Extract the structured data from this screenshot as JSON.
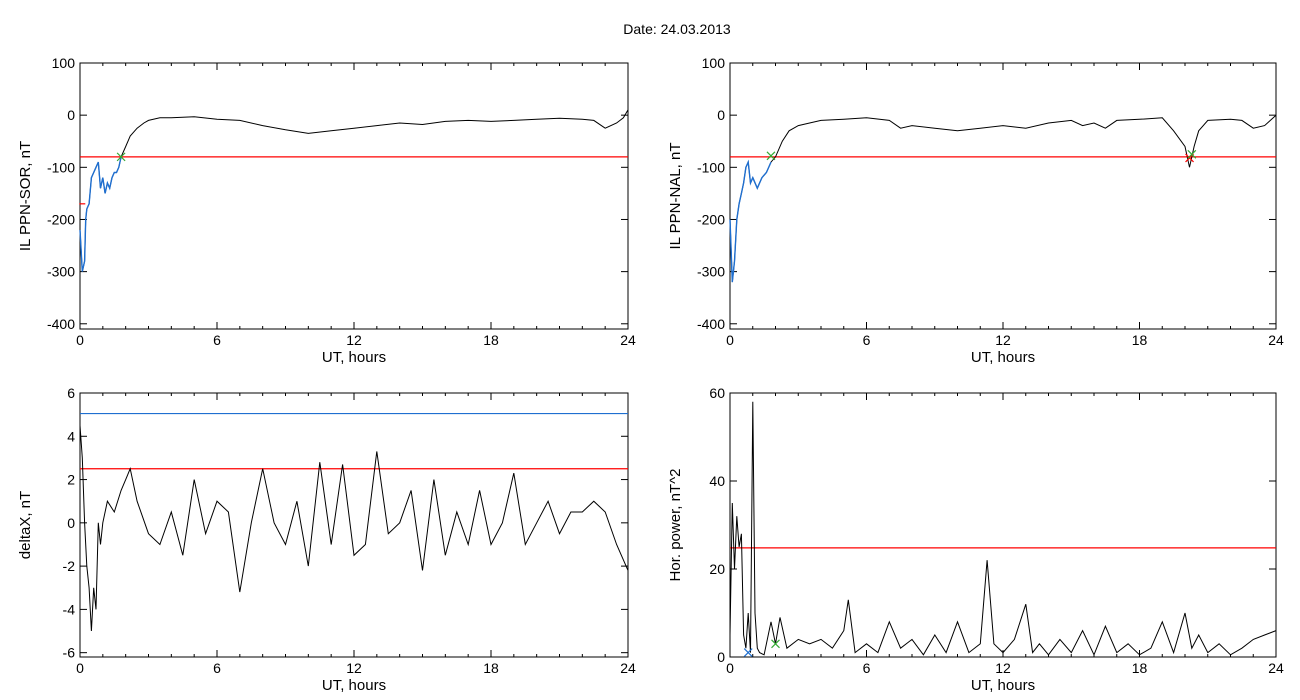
{
  "date_label": "Date:  24.03.2013",
  "colors": {
    "line": "#000000",
    "threshold_red": "#ff0000",
    "threshold_blue": "#1f6fd0",
    "highlight_blue": "#1f6fd0",
    "marker_green": "#33aa33",
    "marker_red": "#dd3333"
  },
  "chart_data": [
    {
      "id": "p1",
      "type": "line",
      "ylabel": "IL PPN-SOR, nT",
      "xlabel": "UT, hours",
      "xlim": [
        0,
        24
      ],
      "ylim": [
        -410,
        100
      ],
      "xticks": [
        0,
        6,
        12,
        18,
        24
      ],
      "yticks": [
        100,
        0,
        -100,
        -200,
        -300,
        -400
      ],
      "thresholds": [
        {
          "y": -80,
          "color": "red"
        }
      ],
      "series": [
        {
          "x": [
            0,
            0.1,
            0.2,
            0.25,
            0.3,
            0.4,
            0.5,
            0.6,
            0.7,
            0.8,
            0.9,
            1.0,
            1.1,
            1.2,
            1.3,
            1.4,
            1.5,
            1.6,
            1.7,
            1.8,
            2.0,
            2.2,
            2.5,
            2.8,
            3.0,
            3.5,
            4,
            5,
            6,
            7,
            8,
            9,
            10,
            11,
            12,
            13,
            14,
            15,
            16,
            17,
            18,
            19,
            20,
            21,
            22,
            22.5,
            23,
            23.5,
            23.8,
            24
          ],
          "y": [
            -220,
            -300,
            -280,
            -200,
            -180,
            -170,
            -120,
            -110,
            -100,
            -90,
            -140,
            -120,
            -150,
            -130,
            -140,
            -120,
            -110,
            -110,
            -100,
            -80,
            -60,
            -40,
            -25,
            -15,
            -10,
            -5,
            -5,
            -3,
            -8,
            -10,
            -20,
            -28,
            -35,
            -30,
            -25,
            -20,
            -15,
            -18,
            -12,
            -10,
            -12,
            -10,
            -8,
            -6,
            -8,
            -10,
            -25,
            -15,
            -5,
            10
          ],
          "highlight_until_x": 1.8
        }
      ],
      "markers": [
        {
          "x": 1.8,
          "y": -80,
          "color": "green",
          "shape": "x"
        },
        {
          "x": 0.1,
          "y": -170,
          "color": "red",
          "shape": "tick"
        }
      ]
    },
    {
      "id": "p2",
      "type": "line",
      "ylabel": "IL PPN-NAL, nT",
      "xlabel": "UT, hours",
      "xlim": [
        0,
        24
      ],
      "ylim": [
        -410,
        100
      ],
      "xticks": [
        0,
        6,
        12,
        18,
        24
      ],
      "yticks": [
        100,
        0,
        -100,
        -200,
        -300,
        -400
      ],
      "thresholds": [
        {
          "y": -80,
          "color": "red"
        }
      ],
      "series": [
        {
          "x": [
            0,
            0.1,
            0.2,
            0.3,
            0.4,
            0.5,
            0.6,
            0.7,
            0.8,
            0.9,
            1.0,
            1.2,
            1.4,
            1.6,
            1.8,
            2.0,
            2.3,
            2.6,
            3.0,
            3.5,
            4,
            5,
            6,
            7,
            7.5,
            8,
            9,
            10,
            11,
            12,
            13,
            14,
            15,
            15.5,
            16,
            16.5,
            17,
            18,
            19,
            19.5,
            20,
            20.2,
            20.4,
            20.6,
            21,
            22,
            22.5,
            23,
            23.5,
            24
          ],
          "y": [
            -200,
            -320,
            -280,
            -200,
            -170,
            -150,
            -130,
            -100,
            -90,
            -130,
            -120,
            -140,
            -120,
            -110,
            -90,
            -80,
            -50,
            -30,
            -20,
            -15,
            -10,
            -8,
            -5,
            -10,
            -25,
            -20,
            -25,
            -30,
            -25,
            -20,
            -25,
            -15,
            -10,
            -20,
            -15,
            -25,
            -10,
            -8,
            -5,
            -30,
            -60,
            -100,
            -60,
            -30,
            -10,
            -8,
            -10,
            -25,
            -20,
            0
          ],
          "highlight_until_x": 1.8
        }
      ],
      "markers": [
        {
          "x": 1.8,
          "y": -78,
          "color": "green",
          "shape": "x"
        },
        {
          "x": 20.2,
          "y": -82,
          "color": "red",
          "shape": "x"
        },
        {
          "x": 20.3,
          "y": -75,
          "color": "green",
          "shape": "x"
        }
      ]
    },
    {
      "id": "p3",
      "type": "line",
      "ylabel": "deltaX, nT",
      "xlabel": "UT, hours",
      "xlim": [
        0,
        24
      ],
      "ylim": [
        -6.2,
        6
      ],
      "xticks": [
        0,
        6,
        12,
        18,
        24
      ],
      "yticks": [
        6,
        4,
        2,
        0,
        -2,
        -4,
        -6
      ],
      "thresholds": [
        {
          "y": 5.05,
          "color": "blue"
        },
        {
          "y": 2.5,
          "color": "red"
        }
      ],
      "series": [
        {
          "x": [
            0,
            0.1,
            0.2,
            0.3,
            0.4,
            0.5,
            0.6,
            0.7,
            0.8,
            0.9,
            1.0,
            1.2,
            1.5,
            1.8,
            2.0,
            2.2,
            2.5,
            3,
            3.5,
            4,
            4.5,
            5,
            5.5,
            6,
            6.5,
            7,
            7.5,
            8,
            8.5,
            9,
            9.5,
            10,
            10.5,
            11,
            11.5,
            12,
            12.5,
            13,
            13.5,
            14,
            14.5,
            15,
            15.5,
            16,
            16.5,
            17,
            17.5,
            18,
            18.5,
            19,
            19.5,
            20,
            20.5,
            21,
            21.5,
            22,
            22.5,
            23,
            23.5,
            24
          ],
          "y": [
            4.5,
            3,
            0,
            -2,
            -3,
            -5,
            -3,
            -4,
            0,
            -1,
            0,
            1,
            0.5,
            1.5,
            2,
            2.5,
            1,
            -0.5,
            -1,
            0.5,
            -1.5,
            2,
            -0.5,
            1,
            0.5,
            -3.2,
            0,
            2.5,
            0,
            -1,
            1,
            -2,
            2.8,
            -1,
            2.7,
            -1.5,
            -1,
            3.3,
            -0.5,
            0,
            1.5,
            -2.2,
            2,
            -1.5,
            0.5,
            -1,
            1.5,
            -1,
            0,
            2.3,
            -1,
            0,
            1,
            -0.5,
            0.5,
            0.5,
            1,
            0.5,
            -1,
            -2.2
          ]
        }
      ],
      "markers": []
    },
    {
      "id": "p4",
      "type": "line",
      "ylabel": "Hor. power, nT^2",
      "xlabel": "UT, hours",
      "xlim": [
        0,
        24
      ],
      "ylim": [
        0,
        60
      ],
      "xticks": [
        0,
        6,
        12,
        18,
        24
      ],
      "yticks": [
        60,
        40,
        20,
        0
      ],
      "thresholds": [
        {
          "y": 24.8,
          "color": "red"
        }
      ],
      "series": [
        {
          "x": [
            0,
            0.1,
            0.2,
            0.3,
            0.4,
            0.5,
            0.6,
            0.7,
            0.8,
            0.9,
            1.0,
            1.1,
            1.2,
            1.3,
            1.5,
            1.8,
            2.0,
            2.2,
            2.5,
            3,
            3.5,
            4,
            4.5,
            5,
            5.2,
            5.5,
            6,
            6.5,
            7,
            7.5,
            8,
            8.5,
            9,
            9.5,
            10,
            10.5,
            11,
            11.3,
            11.6,
            12,
            12.5,
            13,
            13.3,
            13.6,
            14,
            14.5,
            15,
            15.5,
            16,
            16.5,
            17,
            17.5,
            18,
            18.5,
            19,
            19.5,
            20,
            20.3,
            20.6,
            21,
            21.5,
            22,
            22.5,
            23,
            23.5,
            24
          ],
          "y": [
            5,
            35,
            20,
            32,
            25,
            28,
            5,
            2,
            10,
            1,
            58,
            10,
            2,
            1,
            0.5,
            8,
            3,
            9,
            2,
            4,
            3,
            4,
            2,
            6,
            13,
            1,
            3,
            1,
            8,
            2,
            4,
            0.5,
            5,
            1,
            8,
            1,
            3,
            22,
            3,
            1,
            4,
            12,
            1,
            3,
            0.5,
            4,
            1,
            6,
            0.5,
            7,
            1,
            3,
            0.5,
            2,
            8,
            1,
            10,
            2,
            5,
            1,
            3,
            0.5,
            2,
            4,
            5,
            6
          ]
        }
      ],
      "markers": [
        {
          "x": 0.8,
          "y": 1,
          "color": "blue",
          "shape": "x"
        },
        {
          "x": 2.0,
          "y": 3,
          "color": "green",
          "shape": "x"
        }
      ]
    }
  ]
}
